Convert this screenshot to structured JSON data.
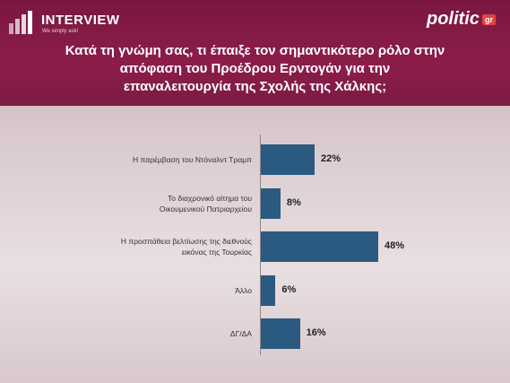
{
  "header": {
    "brand": "INTERVIEW",
    "tagline": "We simply ask!",
    "partner": "politic",
    "partner_suffix": "gr"
  },
  "chart_data": {
    "type": "barh",
    "title": "Κατά τη γνώμη σας, τι έπαιξε τον σημαντικότερο ρόλο στην\nαπόφαση του Προέδρου Ερντογάν για την\nεπαναλειτουργία της Σχολής της Χάλκης;",
    "categories": [
      "Η παρέμβαση του Ντόναλντ Τραμπ",
      "Το διαχρονικό αίτημα του\nΟικουμενικού Πατριαρχείου",
      "Η προσπάθεια βελτίωσης της διεθνούς\nεικόνας της Τουρκίας",
      "Άλλο",
      "ΔΓ/ΔΑ"
    ],
    "values": [
      22,
      8,
      48,
      6,
      16
    ],
    "value_labels": [
      "22%",
      "8%",
      "48%",
      "6%",
      "16%"
    ],
    "color": "#2b5a80"
  }
}
